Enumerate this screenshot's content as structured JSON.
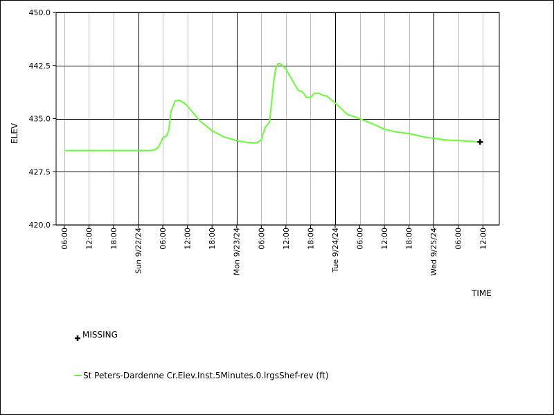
{
  "chart_data": {
    "type": "line",
    "title": "",
    "xlabel": "TIME",
    "ylabel": "ELEV",
    "ylim": [
      420.0,
      450.0
    ],
    "yticks": [
      "420.0",
      "427.5",
      "435.0",
      "442.5",
      "450.0"
    ],
    "grid": true,
    "x_tick_labels": [
      "06:00",
      "12:00",
      "18:00",
      "Sun 9/22/24",
      "06:00",
      "12:00",
      "18:00",
      "Mon 9/23/24",
      "06:00",
      "12:00",
      "18:00",
      "Tue 9/24/24",
      "06:00",
      "12:00",
      "18:00",
      "Wed 9/25/24",
      "06:00",
      "12:00"
    ],
    "series": [
      {
        "name": "St Peters-Dardenne Cr.Elev.Inst.5Minutes.0.lrgsShef-rev (ft)",
        "color": "#66ff33",
        "x_hours": [
          6,
          12,
          15,
          18,
          21,
          24,
          27,
          28,
          28.5,
          29,
          30,
          31,
          31.5,
          32,
          33,
          34,
          35,
          36,
          39,
          42,
          45,
          48,
          51,
          53,
          54,
          54.5,
          55,
          56,
          56.3,
          57,
          57.5,
          58,
          58.5,
          59,
          60,
          61,
          62,
          63,
          64,
          65,
          66,
          67,
          68,
          69,
          70,
          72,
          75,
          78,
          81,
          84,
          87,
          90,
          93,
          96,
          99,
          102,
          105,
          108
        ],
        "values": [
          430.5,
          430.5,
          430.5,
          430.5,
          430.5,
          430.5,
          430.5,
          430.6,
          430.8,
          431.0,
          432.3,
          432.6,
          433.5,
          436.0,
          437.5,
          437.6,
          437.3,
          436.8,
          434.7,
          433.3,
          432.4,
          431.9,
          431.6,
          431.6,
          432.0,
          433.0,
          433.8,
          434.5,
          436.0,
          440.0,
          442.0,
          442.7,
          442.8,
          442.6,
          442.0,
          441.0,
          440.0,
          439.0,
          438.8,
          438.0,
          438.0,
          438.6,
          438.6,
          438.3,
          438.2,
          437.2,
          435.6,
          435.0,
          434.3,
          433.5,
          433.1,
          432.9,
          432.5,
          432.2,
          432.0,
          431.9,
          431.8,
          431.7
        ]
      }
    ],
    "legend": [
      {
        "label": "MISSING",
        "marker": "plus",
        "color": "#000000"
      },
      {
        "label": "St Peters-Dardenne Cr.Elev.Inst.5Minutes.0.lrgsShef-rev (ft)",
        "marker": "line",
        "color": "#66ff33"
      }
    ],
    "legend_placement": "bottom-left"
  }
}
